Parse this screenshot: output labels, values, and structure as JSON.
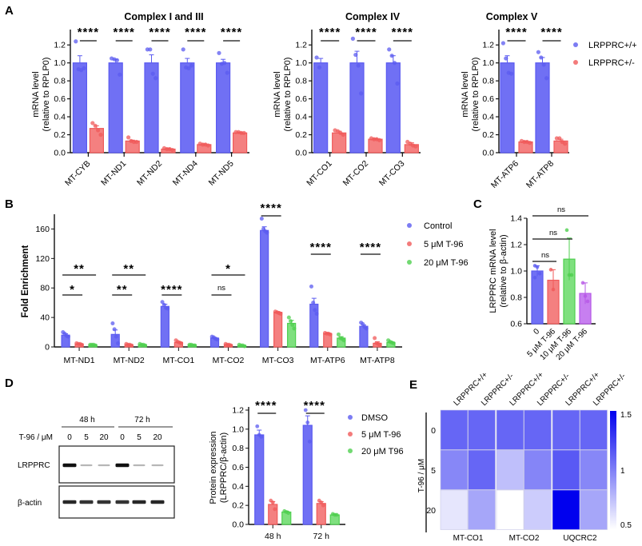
{
  "colors": {
    "blue": "#5b5bf0",
    "blue_fill": "#7070f4",
    "red": "#f05a5a",
    "red_fill": "#f48080",
    "green": "#4fcf4f",
    "green_fill": "#7fe07f",
    "purple": "#b658e6",
    "purple_fill": "#c77ff0",
    "heat_max": "#0000ee",
    "heat_min": "#ffffff"
  },
  "panels": {
    "A": "A",
    "B": "B",
    "C": "C",
    "D": "D",
    "E": "E"
  },
  "chart_data": [
    {
      "id": "A1",
      "type": "bar",
      "title": "Complex I and III",
      "ylabel": "mRNA level",
      "ylabel2": "(relative to RPLP0)",
      "ylim": [
        0,
        1.3
      ],
      "yticks": [
        "0.0",
        "0.2",
        "0.4",
        "0.6",
        "0.8",
        "1.0",
        "1.2"
      ],
      "ytick_values": [
        0,
        0.2,
        0.4,
        0.6,
        0.8,
        1.0,
        1.2
      ],
      "categories": [
        "MT-CYB",
        "MT-ND1",
        "MT-ND2",
        "MT-ND4",
        "MT-ND5"
      ],
      "series": [
        {
          "name": "LRPPRC+/+",
          "values": [
            1.0,
            1.0,
            1.0,
            1.0,
            1.0
          ],
          "err": [
            0.08,
            0.04,
            0.09,
            0.05,
            0.04
          ],
          "points": [
            [
              1.24,
              0.93,
              0.92,
              0.94
            ],
            [
              1.05,
              1.04,
              1.03,
              0.87
            ],
            [
              1.15,
              1.15,
              0.88,
              0.83
            ],
            [
              1.15,
              0.95,
              0.94,
              0.97
            ],
            [
              1.11,
              0.99,
              1.0,
              0.89
            ]
          ]
        },
        {
          "name": "LRPPRC+/-",
          "values": [
            0.27,
            0.13,
            0.04,
            0.09,
            0.22
          ],
          "err": [
            0.03,
            0.01,
            0.01,
            0.01,
            0.01
          ],
          "points": [
            [
              0.33,
              0.3,
              0.25,
              0.2
            ],
            [
              0.17,
              0.13,
              0.12,
              0.12
            ],
            [
              0.05,
              0.04,
              0.04,
              0.03
            ],
            [
              0.1,
              0.09,
              0.09,
              0.08
            ],
            [
              0.23,
              0.23,
              0.22,
              0.22
            ]
          ]
        }
      ],
      "significance": [
        "****",
        "****",
        "****",
        "****",
        "****"
      ]
    },
    {
      "id": "A2",
      "type": "bar",
      "title": "Complex IV",
      "ylabel": "mRNA level",
      "ylabel2": "(relative to RPLP0)",
      "ylim": [
        0,
        1.3
      ],
      "yticks": [
        "0.0",
        "0.2",
        "0.4",
        "0.6",
        "0.8",
        "1.0",
        "1.2"
      ],
      "ytick_values": [
        0,
        0.2,
        0.4,
        0.6,
        0.8,
        1.0,
        1.2
      ],
      "categories": [
        "MT-CO1",
        "MT-CO2",
        "MT-CO3"
      ],
      "series": [
        {
          "name": "LRPPRC+/+",
          "values": [
            1.0,
            1.0,
            1.0
          ],
          "err": [
            0.05,
            0.13,
            0.08
          ],
          "points": [
            [
              1.06,
              0.95
            ],
            [
              1.27,
              1.09,
              0.97,
              0.66
            ],
            [
              1.15,
              1.08,
              1.0,
              0.77
            ]
          ]
        },
        {
          "name": "LRPPRC+/-",
          "values": [
            0.22,
            0.15,
            0.09
          ],
          "err": [
            0.02,
            0.01,
            0.02
          ],
          "points": [
            [
              0.25,
              0.24,
              0.22,
              0.2
            ],
            [
              0.16,
              0.15,
              0.15,
              0.14
            ],
            [
              0.12,
              0.1,
              0.08,
              0.07
            ]
          ]
        }
      ],
      "significance": [
        "****",
        "****",
        "****"
      ]
    },
    {
      "id": "A3",
      "type": "bar",
      "title": "Complex V",
      "ylabel": "mRNA level",
      "ylabel2": "(relative to RPLP0)",
      "ylim": [
        0,
        1.3
      ],
      "yticks": [
        "0.0",
        "0.2",
        "0.4",
        "0.6",
        "0.8",
        "1.0",
        "1.2"
      ],
      "ytick_values": [
        0,
        0.2,
        0.4,
        0.6,
        0.8,
        1.0,
        1.2
      ],
      "categories": [
        "MT-ATP6",
        "MT-ATP8"
      ],
      "series": [
        {
          "name": "LRPPRC+/+",
          "values": [
            1.0,
            1.0
          ],
          "err": [
            0.08,
            0.06
          ],
          "points": [
            [
              1.22,
              1.05,
              0.89,
              0.88
            ],
            [
              1.12,
              1.06,
              0.98,
              0.83
            ]
          ]
        },
        {
          "name": "LRPPRC+/-",
          "values": [
            0.12,
            0.13
          ],
          "err": [
            0.01,
            0.02
          ],
          "points": [
            [
              0.13,
              0.12,
              0.12,
              0.11
            ],
            [
              0.16,
              0.16,
              0.12,
              0.1
            ]
          ]
        }
      ],
      "significance": [
        "****",
        "****"
      ],
      "legend": [
        "LRPPRC+/+",
        "LRPPRC+/-"
      ],
      "legend_placement": "right"
    },
    {
      "id": "B",
      "type": "bar",
      "title": "",
      "ylabel": "Fold Enrichment",
      "ylim": [
        0,
        180
      ],
      "yticks": [
        "0",
        "40",
        "80",
        "120",
        "160"
      ],
      "ytick_values": [
        0,
        40,
        80,
        120,
        160
      ],
      "categories": [
        "MT-ND1",
        "MT-ND2",
        "MT-CO1",
        "MT-CO2",
        "MT-CO3",
        "MT-ATP6",
        "MT-ATP8"
      ],
      "series": [
        {
          "name": "Control",
          "values": [
            16,
            17,
            55,
            12,
            158,
            58,
            28
          ],
          "err": [
            2,
            6,
            3,
            1,
            5,
            8,
            2
          ],
          "points": [
            [
              20,
              18,
              15,
              14
            ],
            [
              32,
              24,
              14,
              5
            ],
            [
              61,
              57,
              53,
              52
            ],
            [
              14,
              13,
              11,
              10
            ],
            [
              174,
              160,
              157,
              155
            ],
            [
              82,
              60,
              50,
              45
            ],
            [
              33,
              31,
              27,
              25
            ]
          ]
        },
        {
          "name": "5 μM T-96",
          "values": [
            4,
            3,
            6,
            3,
            47,
            18,
            5
          ],
          "err": [
            0.5,
            0.5,
            1,
            0.5,
            1,
            1,
            2
          ],
          "points": [
            [
              5,
              4,
              4,
              3
            ],
            [
              4,
              3,
              3,
              2
            ],
            [
              9,
              7,
              6,
              5
            ],
            [
              4,
              3,
              3,
              2
            ],
            [
              48,
              47,
              46,
              45
            ],
            [
              19,
              18,
              18,
              17
            ],
            [
              12,
              5,
              4,
              3
            ]
          ]
        },
        {
          "name": "20 μM T-96",
          "values": [
            3,
            3,
            3,
            2,
            32,
            12,
            6
          ],
          "err": [
            0.3,
            0.5,
            0.3,
            0.3,
            4,
            2,
            1
          ],
          "points": [
            [
              3,
              3,
              3,
              2
            ],
            [
              4,
              3,
              3,
              2
            ],
            [
              3,
              3,
              2,
              2
            ],
            [
              3,
              2,
              2,
              1
            ],
            [
              40,
              35,
              30,
              25
            ],
            [
              17,
              12,
              11,
              9
            ],
            [
              9,
              7,
              6,
              5
            ]
          ]
        }
      ],
      "significance_brackets": [
        {
          "cat": 0,
          "from": 0,
          "to": 1,
          "label": "*"
        },
        {
          "cat": 0,
          "from": 0,
          "to": 2,
          "label": "**"
        },
        {
          "cat": 1,
          "from": 0,
          "to": 1,
          "label": "**"
        },
        {
          "cat": 1,
          "from": 0,
          "to": 2,
          "label": "**"
        },
        {
          "cat": 2,
          "from": 0,
          "to": 1,
          "label": "****"
        },
        {
          "cat": 3,
          "from": 0,
          "to": 1,
          "label": "ns"
        },
        {
          "cat": 3,
          "from": 0,
          "to": 2,
          "label": "*"
        },
        {
          "cat": 4,
          "from": 0,
          "to": 1,
          "label": "****"
        },
        {
          "cat": 5,
          "from": 0,
          "to": 1,
          "label": "****"
        },
        {
          "cat": 6,
          "from": 0,
          "to": 1,
          "label": "****"
        }
      ],
      "legend": [
        "Control",
        "5 μM T-96",
        "20 μM T-96"
      ],
      "legend_placement": "right"
    },
    {
      "id": "C",
      "type": "bar",
      "ylabel": "LRPPRC mRNA level",
      "ylabel2": "(relative to β-actin)",
      "ylim": [
        0.6,
        1.4
      ],
      "yticks": [
        "0.6",
        "0.8",
        "1.0",
        "1.2",
        "1.4"
      ],
      "ytick_values": [
        0.6,
        0.8,
        1.0,
        1.2,
        1.4
      ],
      "categories": [
        "0",
        "5 μM T-96",
        "10 μM T-96",
        "20 μM T-96"
      ],
      "values": [
        1.0,
        0.93,
        1.09,
        0.83
      ],
      "err": [
        0.04,
        0.08,
        0.16,
        0.08
      ],
      "points": [
        [
          1.04,
          1.03,
          0.98,
          0.95
        ],
        [
          1.01,
          0.86
        ],
        [
          1.31,
          0.97,
          0.97
        ],
        [
          0.91,
          0.81,
          0.77
        ]
      ],
      "bar_colors": [
        "blue",
        "red",
        "green",
        "purple"
      ],
      "significance_brackets": [
        {
          "from": 0,
          "to": 1,
          "label": "ns"
        },
        {
          "from": 0,
          "to": 2,
          "label": "ns"
        },
        {
          "from": 0,
          "to": 3,
          "label": "ns"
        }
      ]
    },
    {
      "id": "D_blot",
      "type": "table",
      "time_groups": [
        "48 h",
        "72 h"
      ],
      "row_label": "T-96 / μM",
      "lanes": [
        "0",
        "5",
        "20",
        "0",
        "5",
        "20"
      ],
      "bands": [
        {
          "name": "LRPPRC",
          "intensity": [
            1.0,
            0.2,
            0.2,
            1.0,
            0.15,
            0.15
          ]
        },
        {
          "name": "β-actin",
          "intensity": [
            0.9,
            0.85,
            0.85,
            0.85,
            0.9,
            0.9
          ]
        }
      ]
    },
    {
      "id": "D_chart",
      "type": "bar",
      "ylabel": "Protein expression",
      "ylabel2": "(LRPPRC/β-actin)",
      "ylim": [
        0,
        1.2
      ],
      "yticks": [
        "0.0",
        "0.2",
        "0.4",
        "0.6",
        "0.8",
        "1.0",
        "1.2"
      ],
      "ytick_values": [
        0,
        0.2,
        0.4,
        0.6,
        0.8,
        1.0,
        1.2
      ],
      "categories": [
        "48 h",
        "72 h"
      ],
      "series": [
        {
          "name": "DMSO",
          "values": [
            0.94,
            1.04
          ],
          "err": [
            0.05,
            0.1
          ],
          "points": [
            [
              1.03,
              0.94,
              0.92
            ],
            [
              1.2,
              1.07,
              0.87
            ]
          ]
        },
        {
          "name": "5 μM T-96",
          "values": [
            0.21,
            0.22
          ],
          "err": [
            0.03,
            0.02
          ],
          "points": [
            [
              0.25,
              0.23,
              0.16
            ],
            [
              0.25,
              0.23,
              0.2
            ]
          ]
        },
        {
          "name": "20 μM T96",
          "values": [
            0.13,
            0.1
          ],
          "err": [
            0.01,
            0.01
          ],
          "points": [
            [
              0.14,
              0.13,
              0.12
            ],
            [
              0.11,
              0.1,
              0.1
            ]
          ]
        }
      ],
      "significance": [
        "****",
        "****"
      ],
      "legend": [
        "DMSO",
        "5 μM T-96",
        "20 μM T96"
      ],
      "legend_placement": "right"
    },
    {
      "id": "E",
      "type": "heatmap",
      "ylabel": "T-96 / μM",
      "rows": [
        "0",
        "5",
        "20"
      ],
      "col_labels": [
        "LRPPRC+/+",
        "LRPPRC+/-",
        "LRPPRC+/+",
        "LRPPRC+/-",
        "LRPPRC+/+",
        "LRPPRC+/-"
      ],
      "groups": [
        "MT-CO1",
        "MT-CO2",
        "UQCRC2"
      ],
      "values": [
        [
          1.1,
          1.1,
          1.1,
          1.1,
          1.1,
          1.1
        ],
        [
          0.97,
          1.1,
          0.75,
          0.98,
          1.15,
          0.97
        ],
        [
          0.6,
          0.85,
          0.5,
          0.7,
          1.5,
          0.85
        ]
      ],
      "colorbar": {
        "min": 0.5,
        "max": 1.5,
        "ticks": [
          "0.5",
          "1",
          "1.5"
        ],
        "tick_values": [
          0.5,
          1,
          1.5
        ]
      }
    }
  ]
}
